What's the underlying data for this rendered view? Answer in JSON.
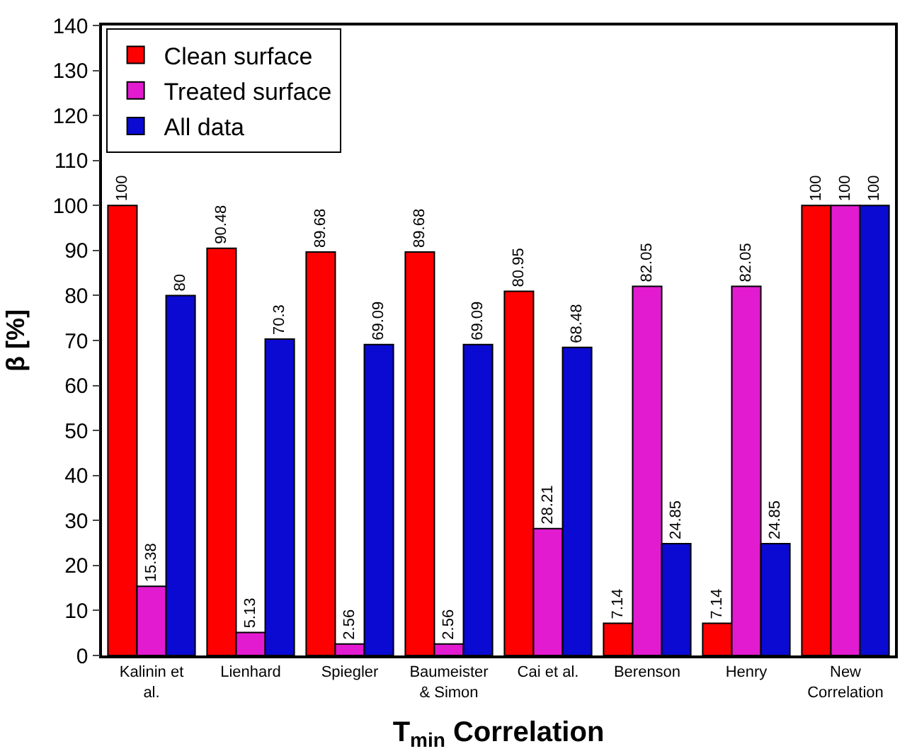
{
  "chart_data": {
    "type": "bar",
    "xlabel": "T$_{min}$ Correlation",
    "ylabel": "β [%]",
    "categories": [
      "Kalinin et al.",
      "Lienhard",
      "Spiegler",
      "Baumeister & Simon",
      "Cai et al.",
      "Berenson",
      "Henry",
      "New Correlation"
    ],
    "series": [
      {
        "name": "Clean surface",
        "color": "#ff0000",
        "values": [
          100,
          90.48,
          89.68,
          89.68,
          80.95,
          7.14,
          7.14,
          100
        ]
      },
      {
        "name": "Treated surface",
        "color": "#e21bd0",
        "values": [
          15.38,
          5.13,
          2.56,
          2.56,
          28.21,
          82.05,
          82.05,
          100
        ]
      },
      {
        "name": "All data",
        "color": "#0a0ad2",
        "values": [
          80,
          70.3,
          69.09,
          69.09,
          68.48,
          24.85,
          24.85,
          100
        ]
      }
    ],
    "ylim": [
      0,
      140
    ],
    "yticks": [
      0,
      10,
      20,
      30,
      40,
      50,
      60,
      70,
      80,
      90,
      100,
      110,
      120,
      130,
      140
    ],
    "data_labels": true,
    "legend": "top left"
  }
}
